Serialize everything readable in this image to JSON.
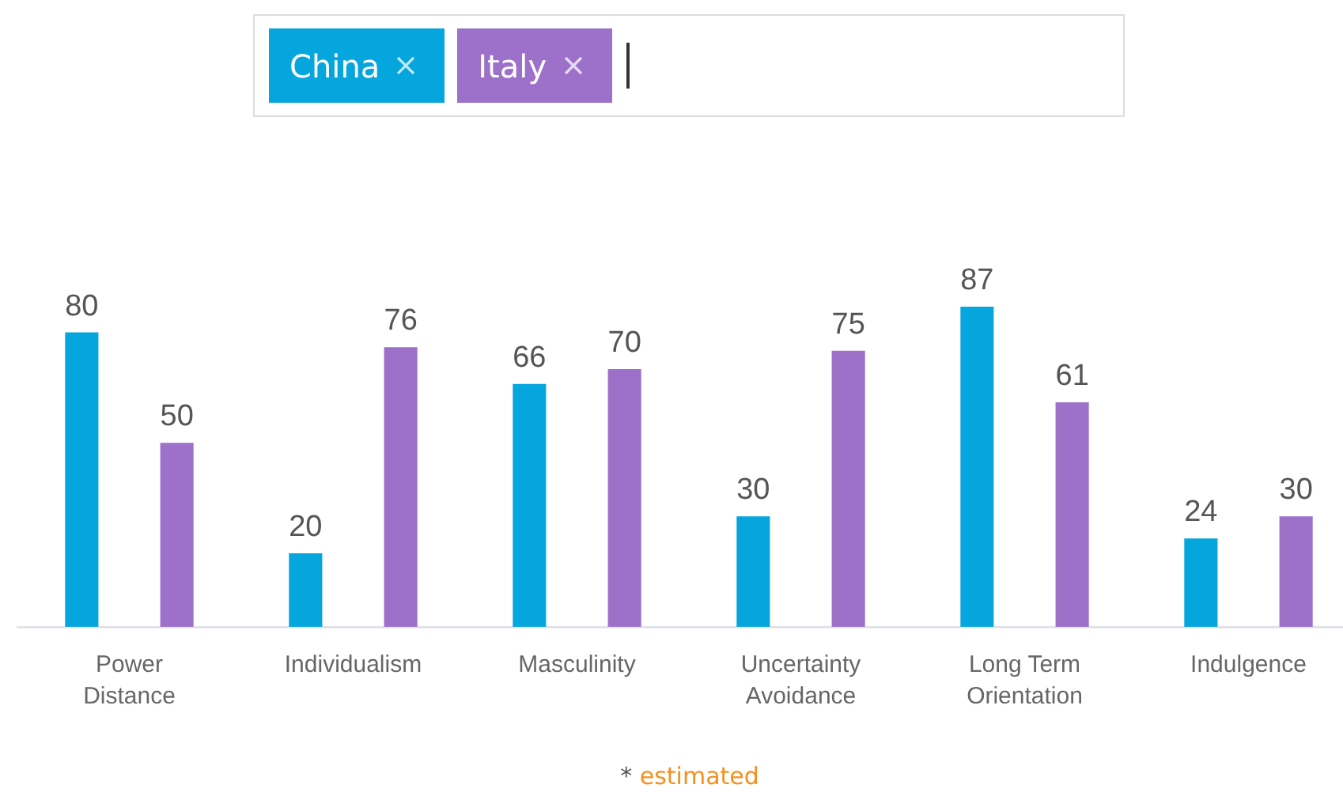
{
  "chart_data": {
    "type": "bar",
    "categories": [
      "Power Distance",
      "Individualism",
      "Masculinity",
      "Uncertainty Avoidance",
      "Long Term Orientation",
      "Indulgence"
    ],
    "series": [
      {
        "name": "China",
        "color": "#05a5de",
        "values": [
          80,
          20,
          66,
          30,
          87,
          24
        ]
      },
      {
        "name": "Italy",
        "color": "#9d70ca",
        "values": [
          50,
          76,
          70,
          75,
          61,
          30
        ]
      }
    ],
    "data_labels": true,
    "legend": "top",
    "grid": false,
    "tick_labels": "x",
    "annotations": [
      "* estimated"
    ]
  }
}
